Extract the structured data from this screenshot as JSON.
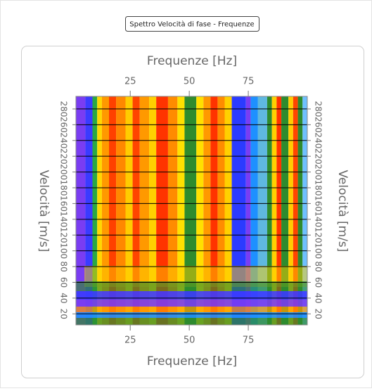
{
  "window_title": "Spettro Velocità di fase - Frequenze",
  "chart_data": {
    "type": "heatmap",
    "x_label": "Frequenze [Hz]",
    "y_label": "Velocità [m/s]",
    "xlim": [
      2,
      100
    ],
    "xticks": [
      25,
      50,
      75
    ],
    "ylim": [
      6,
      296
    ],
    "yticks": [
      20,
      40,
      60,
      80,
      100,
      120,
      140,
      160,
      180,
      200,
      220,
      240,
      260,
      280
    ],
    "grid": true,
    "bands": [
      {
        "x": [
          2,
          6
        ],
        "color": "#7a3df2"
      },
      {
        "x": [
          6,
          9
        ],
        "color": "#3b3bff"
      },
      {
        "x": [
          9,
          11
        ],
        "color": "#2aa845"
      },
      {
        "x": [
          11,
          13
        ],
        "color": "#ffd700"
      },
      {
        "x": [
          13,
          16
        ],
        "color": "#ff9900"
      },
      {
        "x": [
          16,
          19
        ],
        "color": "#ff4000"
      },
      {
        "x": [
          19,
          23
        ],
        "color": "#ff8800"
      },
      {
        "x": [
          23,
          26
        ],
        "color": "#ffcc00"
      },
      {
        "x": [
          26,
          29
        ],
        "color": "#ff4500"
      },
      {
        "x": [
          29,
          33
        ],
        "color": "#ff9900"
      },
      {
        "x": [
          33,
          36
        ],
        "color": "#ffd000"
      },
      {
        "x": [
          36,
          41
        ],
        "color": "#ff3300"
      },
      {
        "x": [
          41,
          45
        ],
        "color": "#ff8c00"
      },
      {
        "x": [
          45,
          48
        ],
        "color": "#ffe000"
      },
      {
        "x": [
          48,
          53
        ],
        "color": "#2e8b2e"
      },
      {
        "x": [
          53,
          56
        ],
        "color": "#ffe000"
      },
      {
        "x": [
          56,
          59
        ],
        "color": "#ff9900"
      },
      {
        "x": [
          59,
          62
        ],
        "color": "#ff3300"
      },
      {
        "x": [
          62,
          65
        ],
        "color": "#ff8c00"
      },
      {
        "x": [
          65,
          68
        ],
        "color": "#ffd000"
      },
      {
        "x": [
          68,
          74
        ],
        "color": "#2b3bff"
      },
      {
        "x": [
          74,
          76
        ],
        "color": "#7a3df2"
      },
      {
        "x": [
          76,
          79
        ],
        "color": "#1e90ff"
      },
      {
        "x": [
          79,
          83
        ],
        "color": "#5fb8e0"
      },
      {
        "x": [
          83,
          85
        ],
        "color": "#2e8b2e"
      },
      {
        "x": [
          85,
          87
        ],
        "color": "#ffd000"
      },
      {
        "x": [
          87,
          89
        ],
        "color": "#ff3300"
      },
      {
        "x": [
          89,
          92
        ],
        "color": "#2e8b2e"
      },
      {
        "x": [
          92,
          94
        ],
        "color": "#ffcc00"
      },
      {
        "x": [
          94,
          96
        ],
        "color": "#ff4500"
      },
      {
        "x": [
          96,
          98
        ],
        "color": "#2e8b2e"
      },
      {
        "x": [
          98,
          100
        ],
        "color": "#6fc0ff"
      }
    ]
  }
}
